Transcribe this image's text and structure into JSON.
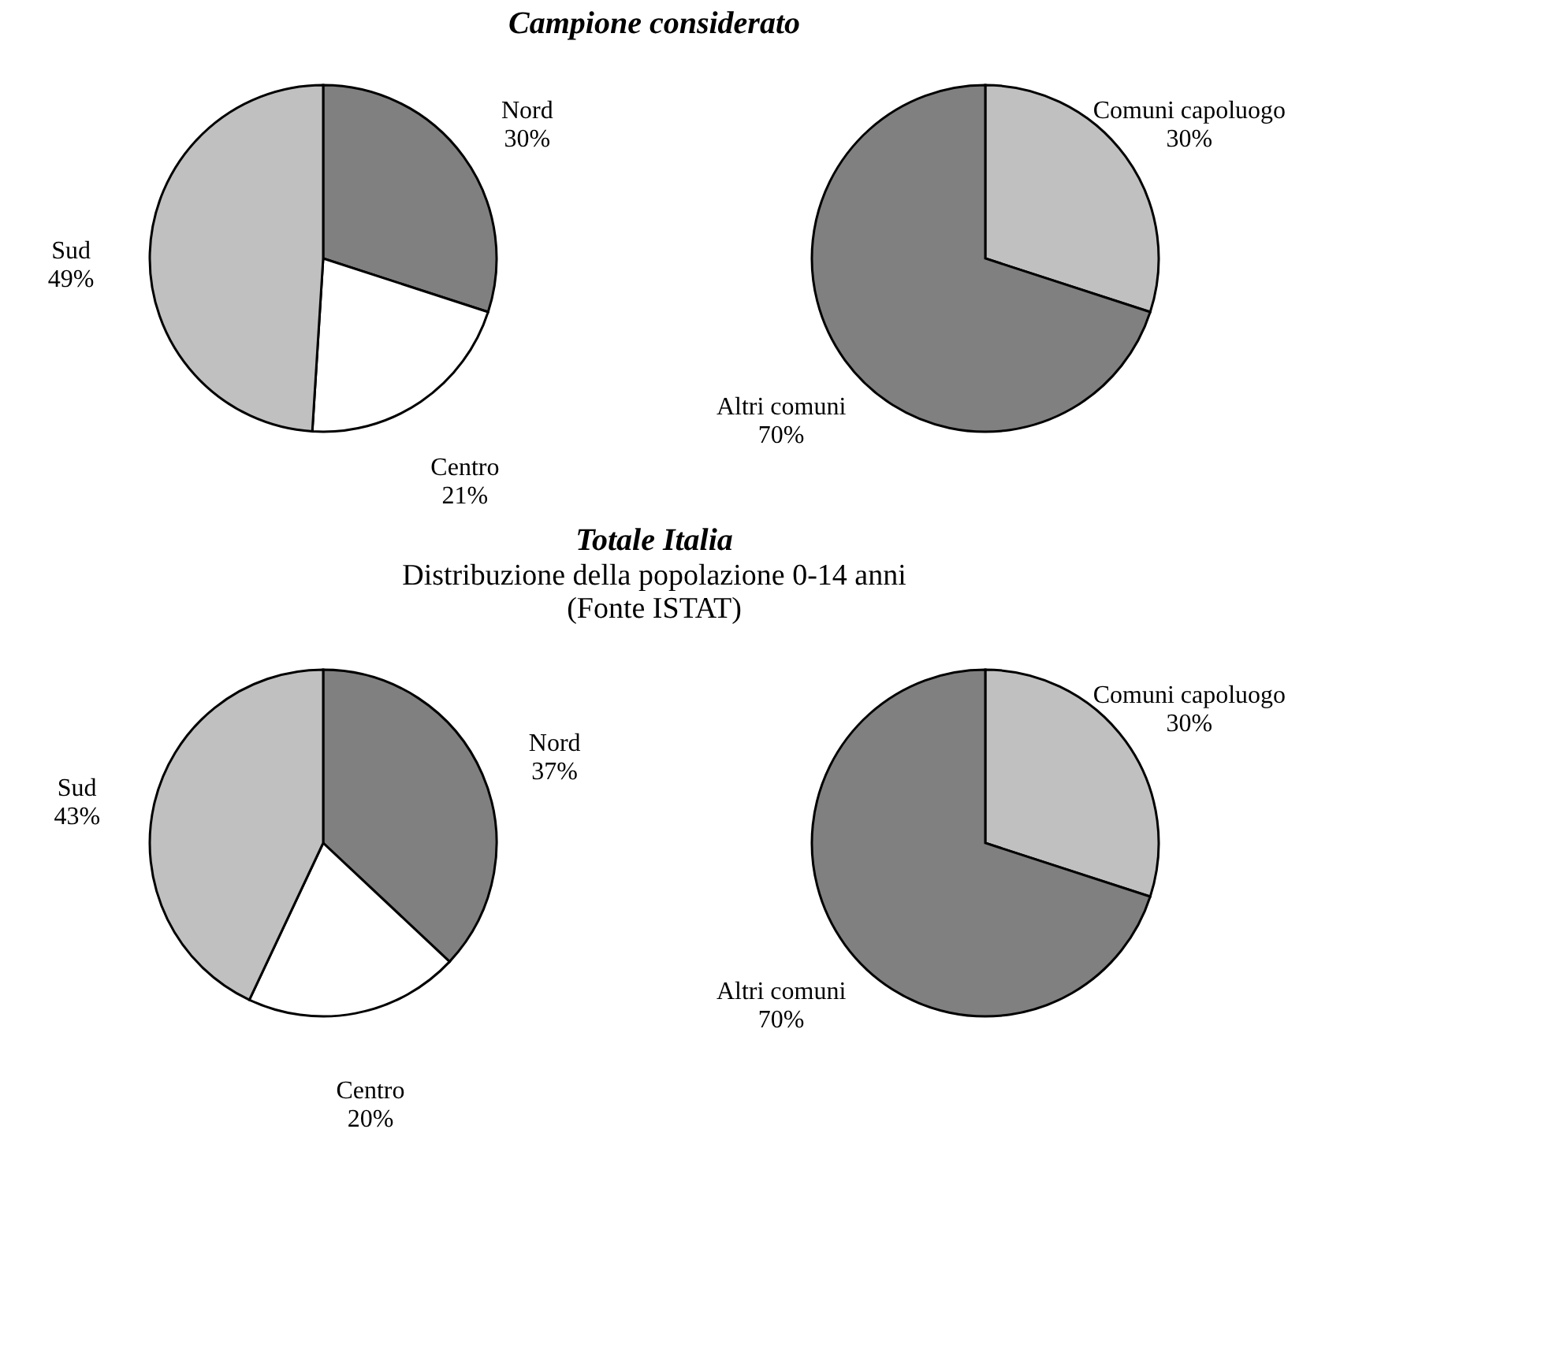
{
  "chart_data": [
    {
      "type": "pie",
      "title": "Campione considerato",
      "categories": [
        "Nord",
        "Centro",
        "Sud"
      ],
      "values": [
        30,
        21,
        49
      ],
      "value_labels": [
        "30%",
        "21%",
        "49%"
      ],
      "colors": [
        "#808080",
        "#ffffff",
        "#c0c0c0"
      ]
    },
    {
      "type": "pie",
      "categories": [
        "Comuni capoluogo",
        "Altri comuni"
      ],
      "values": [
        30,
        70
      ],
      "value_labels": [
        "30%",
        "70%"
      ],
      "colors": [
        "#c0c0c0",
        "#808080"
      ]
    },
    {
      "type": "pie",
      "title": "Totale Italia",
      "subtitle": "Distribuzione della popolazione 0-14 anni",
      "annotations": [
        "(Fonte ISTAT)"
      ],
      "categories": [
        "Nord",
        "Centro",
        "Sud"
      ],
      "values": [
        37,
        20,
        43
      ],
      "value_labels": [
        "37%",
        "20%",
        "43%"
      ],
      "colors": [
        "#808080",
        "#ffffff",
        "#c0c0c0"
      ]
    },
    {
      "type": "pie",
      "categories": [
        "Comuni capoluogo",
        "Altri comuni"
      ],
      "values": [
        30,
        70
      ],
      "value_labels": [
        "30%",
        "70%"
      ],
      "colors": [
        "#c0c0c0",
        "#808080"
      ]
    }
  ]
}
